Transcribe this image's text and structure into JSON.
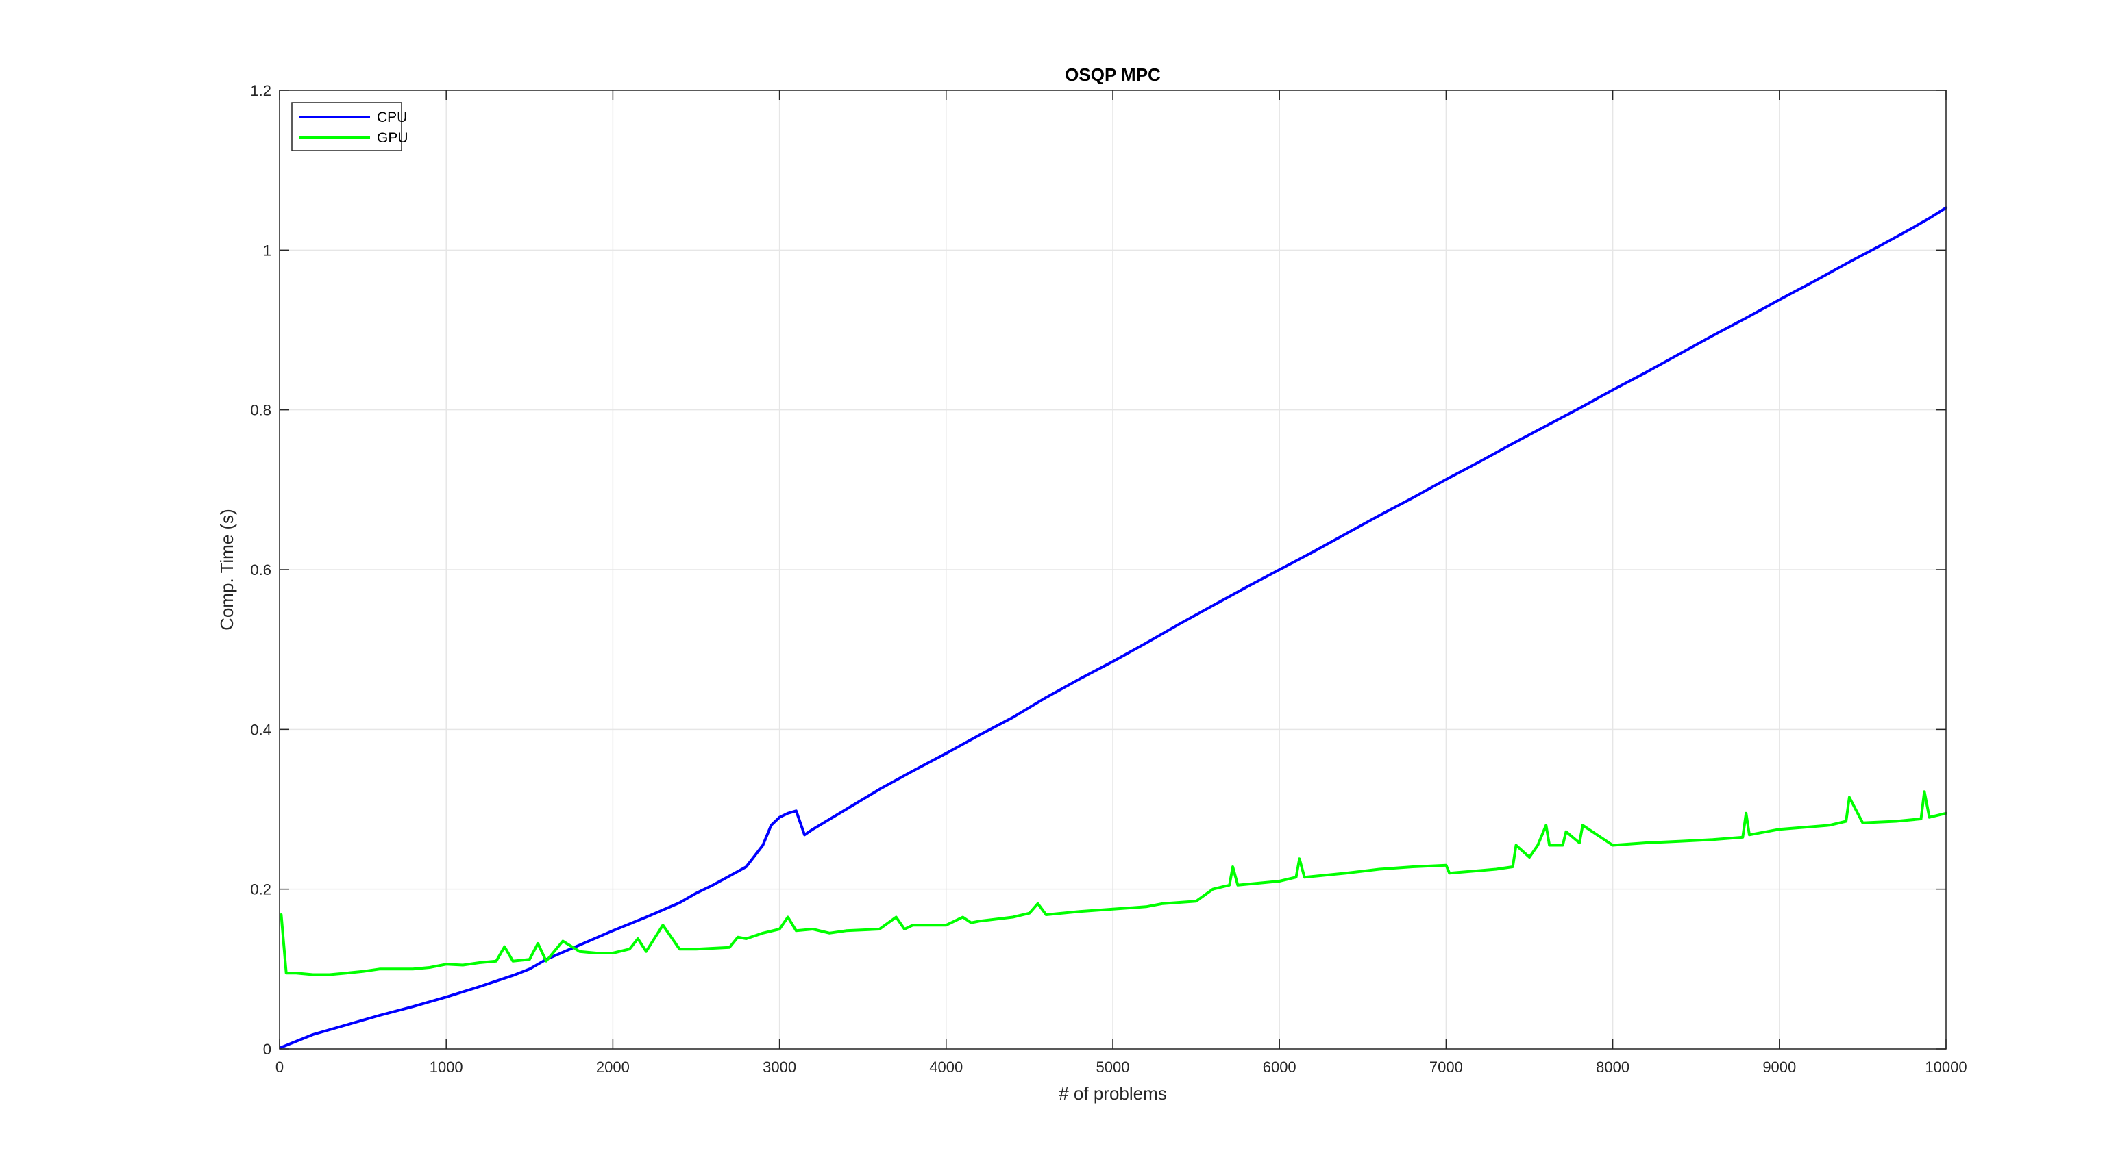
{
  "chart_data": {
    "type": "line",
    "title": "OSQP MPC",
    "xlabel": "# of problems",
    "ylabel": "Comp. Time (s)",
    "xlim": [
      0,
      10000
    ],
    "ylim": [
      0,
      1.2
    ],
    "xticks": [
      0,
      1000,
      2000,
      3000,
      4000,
      5000,
      6000,
      7000,
      8000,
      9000,
      10000
    ],
    "yticks": [
      0,
      0.2,
      0.4,
      0.6,
      0.8,
      1,
      1.2
    ],
    "xtick_labels": [
      "0",
      "1000",
      "2000",
      "3000",
      "4000",
      "5000",
      "6000",
      "7000",
      "8000",
      "9000",
      "10000"
    ],
    "ytick_labels": [
      "0",
      "0.2",
      "0.4",
      "0.6",
      "0.8",
      "1",
      "1.2"
    ],
    "grid": true,
    "legend_position": "top-left",
    "series": [
      {
        "name": "CPU",
        "color": "#0000ff",
        "x": [
          10,
          200,
          400,
          600,
          800,
          1000,
          1200,
          1400,
          1500,
          1600,
          1800,
          2000,
          2200,
          2400,
          2500,
          2600,
          2800,
          2900,
          2950,
          3000,
          3050,
          3100,
          3150,
          3200,
          3400,
          3600,
          3800,
          4000,
          4200,
          4400,
          4600,
          4800,
          5000,
          5200,
          5400,
          5600,
          5800,
          6000,
          6200,
          6400,
          6600,
          6800,
          7000,
          7200,
          7400,
          7600,
          7800,
          8000,
          8200,
          8400,
          8600,
          8800,
          9000,
          9200,
          9400,
          9600,
          9800,
          9900,
          10000
        ],
        "y": [
          0.002,
          0.018,
          0.03,
          0.042,
          0.053,
          0.065,
          0.078,
          0.092,
          0.1,
          0.112,
          0.13,
          0.148,
          0.165,
          0.183,
          0.195,
          0.205,
          0.228,
          0.255,
          0.28,
          0.29,
          0.295,
          0.298,
          0.268,
          0.275,
          0.3,
          0.325,
          0.348,
          0.37,
          0.393,
          0.415,
          0.44,
          0.463,
          0.485,
          0.508,
          0.532,
          0.555,
          0.578,
          0.6,
          0.622,
          0.645,
          0.668,
          0.69,
          0.713,
          0.735,
          0.758,
          0.78,
          0.802,
          0.825,
          0.847,
          0.87,
          0.893,
          0.915,
          0.938,
          0.96,
          0.983,
          1.005,
          1.028,
          1.04,
          1.053
        ]
      },
      {
        "name": "GPU",
        "color": "#00ff00",
        "x": [
          10,
          40,
          100,
          200,
          300,
          400,
          500,
          600,
          700,
          800,
          900,
          1000,
          1100,
          1200,
          1300,
          1350,
          1400,
          1500,
          1550,
          1600,
          1700,
          1800,
          1900,
          2000,
          2100,
          2150,
          2200,
          2300,
          2400,
          2500,
          2700,
          2750,
          2800,
          2900,
          3000,
          3050,
          3100,
          3200,
          3300,
          3400,
          3600,
          3700,
          3750,
          3800,
          4000,
          4100,
          4150,
          4200,
          4400,
          4500,
          4550,
          4600,
          4800,
          5000,
          5200,
          5300,
          5500,
          5600,
          5700,
          5720,
          5750,
          6000,
          6100,
          6120,
          6150,
          6400,
          6600,
          6800,
          7000,
          7020,
          7300,
          7400,
          7420,
          7500,
          7550,
          7600,
          7620,
          7700,
          7720,
          7800,
          7820,
          8000,
          8200,
          8400,
          8600,
          8780,
          8800,
          8820,
          9000,
          9300,
          9400,
          9420,
          9500,
          9700,
          9850,
          9870,
          9900,
          10000
        ],
        "y": [
          0.168,
          0.095,
          0.095,
          0.093,
          0.093,
          0.095,
          0.097,
          0.1,
          0.1,
          0.1,
          0.102,
          0.106,
          0.105,
          0.108,
          0.11,
          0.128,
          0.11,
          0.112,
          0.132,
          0.11,
          0.135,
          0.122,
          0.12,
          0.12,
          0.125,
          0.138,
          0.122,
          0.155,
          0.125,
          0.125,
          0.127,
          0.14,
          0.138,
          0.145,
          0.15,
          0.165,
          0.148,
          0.15,
          0.145,
          0.148,
          0.15,
          0.165,
          0.15,
          0.155,
          0.155,
          0.165,
          0.158,
          0.16,
          0.165,
          0.17,
          0.182,
          0.168,
          0.172,
          0.175,
          0.178,
          0.182,
          0.185,
          0.2,
          0.205,
          0.228,
          0.205,
          0.21,
          0.215,
          0.238,
          0.215,
          0.22,
          0.225,
          0.228,
          0.23,
          0.22,
          0.225,
          0.228,
          0.255,
          0.24,
          0.255,
          0.28,
          0.255,
          0.255,
          0.272,
          0.258,
          0.28,
          0.255,
          0.258,
          0.26,
          0.262,
          0.265,
          0.295,
          0.268,
          0.275,
          0.28,
          0.285,
          0.315,
          0.283,
          0.285,
          0.288,
          0.322,
          0.29,
          0.295
        ]
      }
    ]
  }
}
